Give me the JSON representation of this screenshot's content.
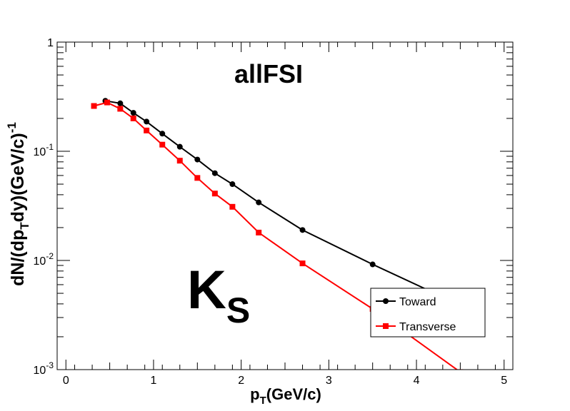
{
  "chart_data": {
    "type": "line",
    "title": "allFSI",
    "overlay_label": {
      "main": "K",
      "sub": "S"
    },
    "xlabel": {
      "main": "p",
      "sub": "T",
      "rest": "(GeV/c)"
    },
    "ylabel": {
      "p1": "dN/(dp",
      "sub": "T",
      "p2": "dy)(GeV/c)",
      "sup": "-1"
    },
    "xlim": [
      -0.1,
      5.1
    ],
    "ylim": [
      0.001,
      1
    ],
    "yscale": "log",
    "grid": false,
    "x_ticks": [
      "0",
      "1",
      "2",
      "3",
      "4",
      "5"
    ],
    "y_ticks": [
      {
        "base": "1",
        "exp": ""
      },
      {
        "base": "10",
        "exp": "-1"
      },
      {
        "base": "10",
        "exp": "-2"
      },
      {
        "base": "10",
        "exp": "-3"
      }
    ],
    "legend": {
      "placement": "bottom-right"
    },
    "series": [
      {
        "name": "Toward",
        "color": "#000000",
        "marker": "circle",
        "x": [
          0.45,
          0.62,
          0.77,
          0.92,
          1.1,
          1.3,
          1.5,
          1.7,
          1.9,
          2.2,
          2.7,
          3.5,
          4.5
        ],
        "y": [
          0.29,
          0.275,
          0.225,
          0.187,
          0.145,
          0.11,
          0.084,
          0.063,
          0.05,
          0.034,
          0.019,
          0.0092,
          0.0039
        ]
      },
      {
        "name": "Transverse",
        "color": "#ff0000",
        "marker": "square",
        "x": [
          0.32,
          0.47,
          0.62,
          0.77,
          0.92,
          1.1,
          1.3,
          1.5,
          1.7,
          1.9,
          2.2,
          2.7,
          3.5,
          4.5
        ],
        "y": [
          0.26,
          0.28,
          0.245,
          0.2,
          0.155,
          0.115,
          0.082,
          0.057,
          0.041,
          0.031,
          0.018,
          0.0094,
          0.0036,
          0.00095
        ]
      }
    ]
  }
}
